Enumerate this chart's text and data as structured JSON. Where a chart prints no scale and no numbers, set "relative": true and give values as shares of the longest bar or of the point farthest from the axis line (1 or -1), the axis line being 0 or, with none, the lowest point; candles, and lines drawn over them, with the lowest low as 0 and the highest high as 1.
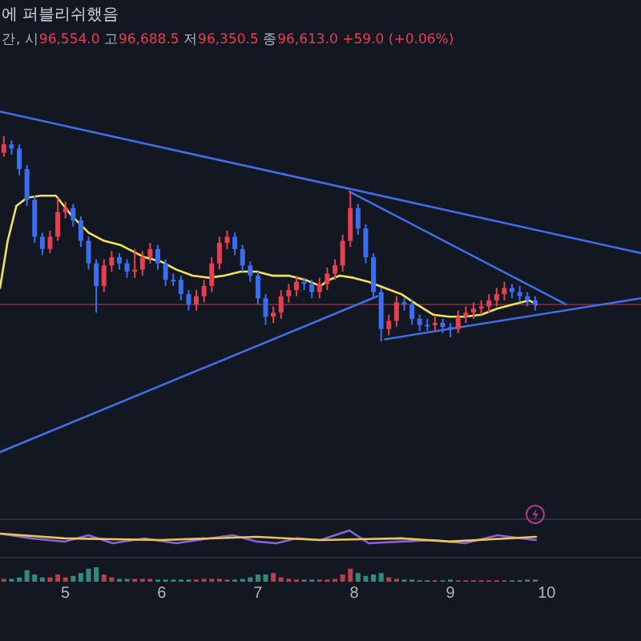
{
  "chart_data": [
    {
      "type": "candlestick",
      "title": "에 퍼블리쉬했음",
      "subtitle": "간, 시96,554.0 고96,688.5 저96,350.5 종96,613.0 +59.0 (+0.06%)",
      "relative": true,
      "tick_labels": "x",
      "grid": false,
      "xlim": [
        4.32,
        10.98
      ],
      "xticks": [
        5,
        6,
        7,
        8,
        9,
        10
      ],
      "x": [
        4.36,
        4.44,
        4.52,
        4.6,
        4.68,
        4.76,
        4.84,
        4.92,
        5.0,
        5.08,
        5.16,
        5.24,
        5.32,
        5.4,
        5.48,
        5.56,
        5.64,
        5.72,
        5.8,
        5.88,
        5.96,
        6.04,
        6.12,
        6.2,
        6.28,
        6.36,
        6.44,
        6.52,
        6.6,
        6.68,
        6.76,
        6.84,
        6.92,
        7.0,
        7.08,
        7.16,
        7.24,
        7.32,
        7.4,
        7.48,
        7.56,
        7.64,
        7.72,
        7.8,
        7.88,
        7.96,
        8.04,
        8.12,
        8.2,
        8.28,
        8.36,
        8.44,
        8.52,
        8.6,
        8.68,
        8.76,
        8.84,
        8.92,
        9.0,
        9.08,
        9.16,
        9.24,
        9.32,
        9.4,
        9.48,
        9.56,
        9.64,
        9.72,
        9.8,
        9.88
      ],
      "ohlc": [
        [
          0.92,
          1,
          0.9,
          0.96
        ],
        [
          0.96,
          0.98,
          0.91,
          0.94
        ],
        [
          0.94,
          0.96,
          0.81,
          0.84
        ],
        [
          0.84,
          0.86,
          0.66,
          0.69
        ],
        [
          0.69,
          0.71,
          0.48,
          0.51
        ],
        [
          0.51,
          0.53,
          0.42,
          0.45
        ],
        [
          0.45,
          0.54,
          0.43,
          0.51
        ],
        [
          0.51,
          0.7,
          0.49,
          0.63
        ],
        [
          0.63,
          0.68,
          0.6,
          0.65
        ],
        [
          0.65,
          0.67,
          0.56,
          0.59
        ],
        [
          0.59,
          0.61,
          0.46,
          0.49
        ],
        [
          0.49,
          0.51,
          0.35,
          0.38
        ],
        [
          0.38,
          0.4,
          0.14,
          0.27
        ],
        [
          0.27,
          0.4,
          0.24,
          0.37
        ],
        [
          0.37,
          0.44,
          0.34,
          0.41
        ],
        [
          0.41,
          0.43,
          0.35,
          0.38
        ],
        [
          0.38,
          0.4,
          0.31,
          0.34
        ],
        [
          0.34,
          0.45,
          0.31,
          0.35
        ],
        [
          0.35,
          0.44,
          0.32,
          0.41
        ],
        [
          0.41,
          0.48,
          0.38,
          0.45
        ],
        [
          0.45,
          0.47,
          0.35,
          0.38
        ],
        [
          0.38,
          0.4,
          0.27,
          0.3
        ],
        [
          0.3,
          0.33,
          0.27,
          0.3
        ],
        [
          0.3,
          0.32,
          0.2,
          0.23
        ],
        [
          0.23,
          0.25,
          0.15,
          0.18
        ],
        [
          0.18,
          0.25,
          0.15,
          0.22
        ],
        [
          0.22,
          0.3,
          0.19,
          0.27
        ],
        [
          0.27,
          0.41,
          0.24,
          0.38
        ],
        [
          0.38,
          0.51,
          0.35,
          0.48
        ],
        [
          0.48,
          0.54,
          0.45,
          0.51
        ],
        [
          0.51,
          0.53,
          0.42,
          0.45
        ],
        [
          0.45,
          0.47,
          0.34,
          0.37
        ],
        [
          0.37,
          0.39,
          0.29,
          0.32
        ],
        [
          0.32,
          0.34,
          0.18,
          0.21
        ],
        [
          0.21,
          0.23,
          0.08,
          0.12
        ],
        [
          0.12,
          0.17,
          0.09,
          0.14
        ],
        [
          0.14,
          0.25,
          0.11,
          0.22
        ],
        [
          0.22,
          0.28,
          0.19,
          0.25
        ],
        [
          0.25,
          0.32,
          0.22,
          0.29
        ],
        [
          0.29,
          0.31,
          0.25,
          0.28
        ],
        [
          0.28,
          0.3,
          0.21,
          0.24
        ],
        [
          0.24,
          0.31,
          0.21,
          0.28
        ],
        [
          0.28,
          0.36,
          0.25,
          0.33
        ],
        [
          0.33,
          0.4,
          0.3,
          0.37
        ],
        [
          0.37,
          0.52,
          0.34,
          0.49
        ],
        [
          0.49,
          0.73,
          0.46,
          0.65
        ],
        [
          0.65,
          0.67,
          0.52,
          0.55
        ],
        [
          0.55,
          0.57,
          0.38,
          0.41
        ],
        [
          0.41,
          0.43,
          0.21,
          0.24
        ],
        [
          0.24,
          0.26,
          0,
          0.06
        ],
        [
          0.06,
          0.13,
          0.03,
          0.1
        ],
        [
          0.1,
          0.22,
          0.07,
          0.19
        ],
        [
          0.19,
          0.21,
          0.15,
          0.18
        ],
        [
          0.18,
          0.2,
          0.08,
          0.11
        ],
        [
          0.11,
          0.13,
          0.05,
          0.08
        ],
        [
          0.08,
          0.11,
          0.05,
          0.08
        ],
        [
          0.08,
          0.12,
          0.05,
          0.09
        ],
        [
          0.09,
          0.11,
          0.04,
          0.07
        ],
        [
          0.07,
          0.09,
          0.02,
          0.06
        ],
        [
          0.06,
          0.15,
          0.04,
          0.12
        ],
        [
          0.12,
          0.17,
          0.09,
          0.14
        ],
        [
          0.14,
          0.19,
          0.11,
          0.16
        ],
        [
          0.16,
          0.2,
          0.13,
          0.17
        ],
        [
          0.17,
          0.23,
          0.14,
          0.2
        ],
        [
          0.2,
          0.26,
          0.17,
          0.23
        ],
        [
          0.23,
          0.29,
          0.2,
          0.26
        ],
        [
          0.26,
          0.28,
          0.21,
          0.24
        ],
        [
          0.24,
          0.27,
          0.19,
          0.22
        ],
        [
          0.22,
          0.24,
          0.17,
          0.2
        ],
        [
          0.2,
          0.22,
          0.15,
          0.18
        ]
      ],
      "colors": [
        "#e5404f",
        "#3a6df0",
        "#3a6df0",
        "#3a6df0",
        "#3a6df0",
        "#3a6df0",
        "#e5404f",
        "#e5404f",
        "#e5404f",
        "#3a6df0",
        "#3a6df0",
        "#3a6df0",
        "#3a6df0",
        "#e5404f",
        "#e5404f",
        "#3a6df0",
        "#3a6df0",
        "#e5404f",
        "#e5404f",
        "#e5404f",
        "#3a6df0",
        "#3a6df0",
        "#3a6df0",
        "#3a6df0",
        "#3a6df0",
        "#e5404f",
        "#e5404f",
        "#e5404f",
        "#e5404f",
        "#e5404f",
        "#3a6df0",
        "#3a6df0",
        "#3a6df0",
        "#3a6df0",
        "#3a6df0",
        "#e5404f",
        "#e5404f",
        "#e5404f",
        "#e5404f",
        "#3a6df0",
        "#3a6df0",
        "#e5404f",
        "#e5404f",
        "#e5404f",
        "#e5404f",
        "#e5404f",
        "#3a6df0",
        "#3a6df0",
        "#3a6df0",
        "#3a6df0",
        "#e5404f",
        "#e5404f",
        "#3a6df0",
        "#3a6df0",
        "#3a6df0",
        "#3a6df0",
        "#e5404f",
        "#3a6df0",
        "#3a6df0",
        "#e5404f",
        "#e5404f",
        "#e5404f",
        "#e5404f",
        "#e5404f",
        "#e5404f",
        "#e5404f",
        "#3a6df0",
        "#3a6df0",
        "#3a6df0",
        "#3a6df0"
      ],
      "series": [
        {
          "type": "line",
          "color": "#f2e35c",
          "x": [
            4.32,
            4.4,
            4.49,
            4.6,
            4.74,
            4.9,
            5.07,
            5.24,
            5.4,
            5.57,
            5.82,
            5.99,
            6.15,
            6.32,
            6.49,
            6.65,
            6.82,
            6.99,
            7.15,
            7.32,
            7.49,
            7.65,
            7.74,
            7.85,
            7.99,
            8.15,
            8.32,
            8.49,
            8.65,
            8.82,
            8.99,
            9.15,
            9.32,
            9.49,
            9.65,
            9.82,
            9.89
          ],
          "values": [
            0.26,
            0.49,
            0.66,
            0.7,
            0.71,
            0.71,
            0.61,
            0.53,
            0.49,
            0.47,
            0.41,
            0.39,
            0.35,
            0.32,
            0.31,
            0.32,
            0.34,
            0.34,
            0.32,
            0.32,
            0.3,
            0.27,
            0.3,
            0.32,
            0.31,
            0.29,
            0.26,
            0.23,
            0.18,
            0.13,
            0.12,
            0.12,
            0.13,
            0.16,
            0.18,
            0.2,
            0.18
          ]
        },
        {
          "type": "line",
          "color": "#3f6ee8",
          "x": [
            4.32,
            10.98
          ],
          "values": [
            1.12,
            0.43
          ]
        },
        {
          "type": "line",
          "color": "#3f6ee8",
          "x": [
            7.95,
            10.2
          ],
          "values": [
            0.73,
            0.18
          ]
        },
        {
          "type": "line",
          "color": "#3f6ee8",
          "x": [
            4.32,
            8.24
          ],
          "values": [
            -0.54,
            0.22
          ]
        },
        {
          "type": "line",
          "color": "#3f6ee8",
          "x": [
            8.32,
            10.98
          ],
          "values": [
            0.01,
            0.21
          ]
        }
      ],
      "ref_lines": [
        {
          "axis": "y",
          "value": 0.18,
          "color": "#6b2a36"
        }
      ]
    },
    {
      "type": "line",
      "relative": true,
      "tick_labels": false,
      "xlim": [
        4.32,
        10.98
      ],
      "series": [
        {
          "color": "#8a63d2",
          "x": [
            4.32,
            4.65,
            4.99,
            5.24,
            5.49,
            5.82,
            6.15,
            6.49,
            6.74,
            6.99,
            7.19,
            7.4,
            7.65,
            7.95,
            8.15,
            8.49,
            8.82,
            9.15,
            9.49,
            9.74,
            9.89
          ],
          "values": [
            0.75,
            0.38,
            0.13,
            0.63,
            0,
            0.38,
            0,
            0.38,
            0.63,
            0.13,
            0,
            0.38,
            0.25,
            1,
            0,
            0.13,
            0.25,
            0,
            0.63,
            0.38,
            0.25
          ]
        },
        {
          "color": "#e8c45a",
          "x": [
            4.32,
            4.99,
            5.99,
            6.99,
            7.65,
            8.49,
            8.99,
            9.89
          ],
          "values": [
            0.75,
            0.38,
            0.25,
            0.5,
            0.25,
            0.38,
            0.13,
            0.5
          ]
        }
      ]
    },
    {
      "type": "bar",
      "relative": true,
      "tick_labels": false,
      "xlim": [
        4.32,
        10.98
      ],
      "x": [
        4.36,
        4.44,
        4.52,
        4.6,
        4.68,
        4.76,
        4.84,
        4.92,
        5.0,
        5.08,
        5.16,
        5.24,
        5.32,
        5.4,
        5.48,
        5.56,
        5.64,
        5.72,
        5.8,
        5.88,
        5.96,
        6.04,
        6.12,
        6.2,
        6.28,
        6.36,
        6.44,
        6.52,
        6.6,
        6.68,
        6.76,
        6.84,
        6.92,
        7.0,
        7.08,
        7.16,
        7.24,
        7.32,
        7.4,
        7.48,
        7.56,
        7.64,
        7.72,
        7.8,
        7.88,
        7.96,
        8.04,
        8.12,
        8.2,
        8.28,
        8.36,
        8.44,
        8.52,
        8.6,
        8.68,
        8.76,
        8.84,
        8.92,
        9.0,
        9.08,
        9.16,
        9.24,
        9.32,
        9.4,
        9.48,
        9.56,
        9.64,
        9.72,
        9.8,
        9.88
      ],
      "values": [
        0.2,
        0.2,
        0.3,
        0.8,
        0.5,
        0.3,
        0.3,
        0.5,
        0.3,
        0.4,
        0.6,
        0.9,
        1,
        0.5,
        0.3,
        0.2,
        0.2,
        0.2,
        0.2,
        0.2,
        0.15,
        0.15,
        0.15,
        0.15,
        0.15,
        0.15,
        0.2,
        0.2,
        0.2,
        0.15,
        0.15,
        0.2,
        0.3,
        0.5,
        0.5,
        0.6,
        0.3,
        0.2,
        0.15,
        0.15,
        0.15,
        0.15,
        0.15,
        0.2,
        0.5,
        0.9,
        0.6,
        0.4,
        0.5,
        0.6,
        0.3,
        0.2,
        0.15,
        0.15,
        0.1,
        0.1,
        0.1,
        0.1,
        0.15,
        0.1,
        0.1,
        0.1,
        0.1,
        0.1,
        0.1,
        0.1,
        0.1,
        0.1,
        0.15,
        0.15
      ],
      "colors": [
        "#b8404c",
        "#2f8c7c",
        "#2f8c7c",
        "#2f8c7c",
        "#2f8c7c",
        "#2f8c7c",
        "#b8404c",
        "#b8404c",
        "#b8404c",
        "#2f8c7c",
        "#2f8c7c",
        "#2f8c7c",
        "#2f8c7c",
        "#b8404c",
        "#b8404c",
        "#2f8c7c",
        "#2f8c7c",
        "#b8404c",
        "#b8404c",
        "#b8404c",
        "#2f8c7c",
        "#2f8c7c",
        "#2f8c7c",
        "#2f8c7c",
        "#2f8c7c",
        "#b8404c",
        "#b8404c",
        "#b8404c",
        "#b8404c",
        "#b8404c",
        "#2f8c7c",
        "#2f8c7c",
        "#2f8c7c",
        "#2f8c7c",
        "#2f8c7c",
        "#b8404c",
        "#b8404c",
        "#b8404c",
        "#b8404c",
        "#2f8c7c",
        "#2f8c7c",
        "#b8404c",
        "#b8404c",
        "#b8404c",
        "#b8404c",
        "#b8404c",
        "#2f8c7c",
        "#2f8c7c",
        "#2f8c7c",
        "#2f8c7c",
        "#b8404c",
        "#b8404c",
        "#2f8c7c",
        "#2f8c7c",
        "#2f8c7c",
        "#2f8c7c",
        "#b8404c",
        "#2f8c7c",
        "#2f8c7c",
        "#b8404c",
        "#b8404c",
        "#b8404c",
        "#b8404c",
        "#b8404c",
        "#b8404c",
        "#b8404c",
        "#2f8c7c",
        "#2f8c7c",
        "#2f8c7c",
        "#2f8c7c"
      ]
    }
  ]
}
